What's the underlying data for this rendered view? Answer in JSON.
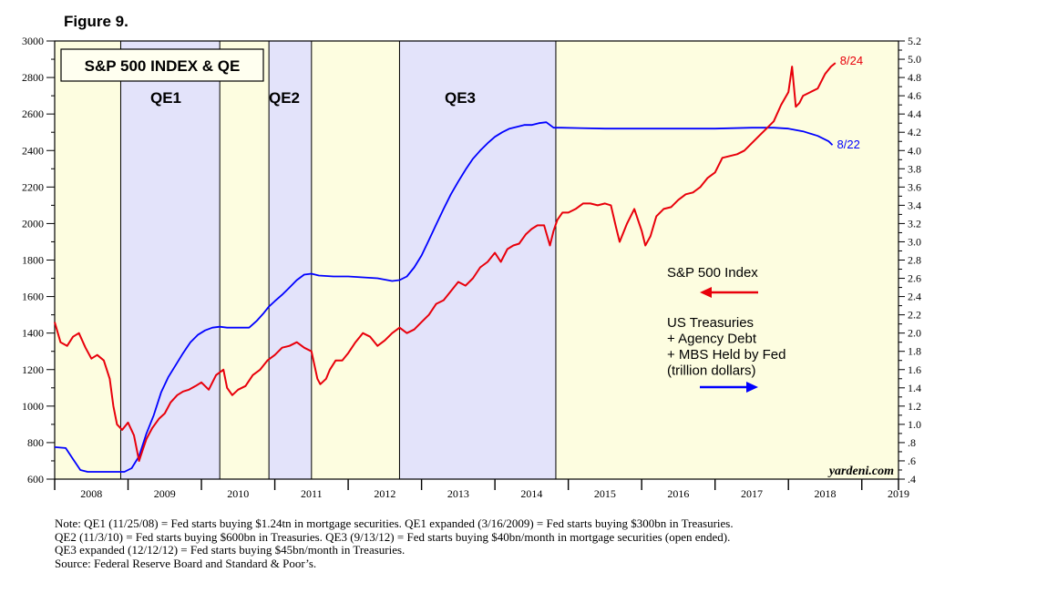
{
  "figure_label": "Figure 9.",
  "chart_data": {
    "type": "line",
    "title": "S&P 500 INDEX & QE",
    "x_range": [
      2008.0,
      2019.5
    ],
    "x_tick_labels": [
      "2008",
      "2009",
      "2010",
      "2011",
      "2012",
      "2013",
      "2014",
      "2015",
      "2016",
      "2017",
      "2018",
      "2019"
    ],
    "left_axis": {
      "range": [
        600,
        3000
      ],
      "tick_labels": [
        "600",
        "800",
        "1000",
        "1200",
        "1400",
        "1600",
        "1800",
        "2000",
        "2200",
        "2400",
        "2600",
        "2800",
        "3000"
      ]
    },
    "right_axis": {
      "range": [
        0.4,
        5.2
      ],
      "tick_labels": [
        ".4",
        ".6",
        ".8",
        "1.0",
        "1.2",
        "1.4",
        "1.6",
        "1.8",
        "2.0",
        "2.2",
        "2.4",
        "2.6",
        "2.8",
        "3.0",
        "3.2",
        "3.4",
        "3.6",
        "3.8",
        "4.0",
        "4.2",
        "4.4",
        "4.6",
        "4.8",
        "5.0",
        "5.2"
      ]
    },
    "qe_periods": [
      {
        "name": "QE1",
        "start": 2008.9,
        "end": 2010.25
      },
      {
        "name": "QE2",
        "start": 2010.92,
        "end": 2011.5
      },
      {
        "name": "QE3",
        "start": 2012.7,
        "end": 2014.83
      }
    ],
    "colors": {
      "qe_band": "#e3e3fa",
      "non_qe_band": "#fdfde0",
      "sp500": "#e8000b",
      "fed_holdings": "#0000ff"
    },
    "series": [
      {
        "name": "S&P 500 Index",
        "axis": "left",
        "end_label": "8/24",
        "x": [
          2008.0,
          2008.08,
          2008.17,
          2008.25,
          2008.33,
          2008.42,
          2008.5,
          2008.58,
          2008.67,
          2008.75,
          2008.8,
          2008.85,
          2008.92,
          2009.0,
          2009.08,
          2009.15,
          2009.2,
          2009.25,
          2009.33,
          2009.42,
          2009.5,
          2009.58,
          2009.67,
          2009.75,
          2009.83,
          2009.92,
          2010.0,
          2010.1,
          2010.2,
          2010.3,
          2010.35,
          2010.42,
          2010.5,
          2010.6,
          2010.7,
          2010.8,
          2010.9,
          2011.0,
          2011.1,
          2011.2,
          2011.3,
          2011.4,
          2011.5,
          2011.58,
          2011.62,
          2011.7,
          2011.75,
          2011.83,
          2011.92,
          2012.0,
          2012.1,
          2012.2,
          2012.3,
          2012.4,
          2012.5,
          2012.6,
          2012.7,
          2012.8,
          2012.9,
          2013.0,
          2013.1,
          2013.2,
          2013.3,
          2013.4,
          2013.5,
          2013.6,
          2013.7,
          2013.8,
          2013.9,
          2014.0,
          2014.08,
          2014.17,
          2014.25,
          2014.33,
          2014.42,
          2014.5,
          2014.58,
          2014.67,
          2014.75,
          2014.8,
          2014.85,
          2014.92,
          2015.0,
          2015.1,
          2015.2,
          2015.3,
          2015.4,
          2015.5,
          2015.58,
          2015.65,
          2015.7,
          2015.8,
          2015.9,
          2016.0,
          2016.05,
          2016.12,
          2016.2,
          2016.3,
          2016.4,
          2016.5,
          2016.6,
          2016.7,
          2016.8,
          2016.9,
          2017.0,
          2017.1,
          2017.2,
          2017.3,
          2017.4,
          2017.5,
          2017.6,
          2017.7,
          2017.8,
          2017.9,
          2018.0,
          2018.05,
          2018.1,
          2018.15,
          2018.2,
          2018.3,
          2018.4,
          2018.5,
          2018.58,
          2018.64
        ],
        "values": [
          1460,
          1350,
          1330,
          1380,
          1400,
          1320,
          1260,
          1280,
          1250,
          1150,
          1000,
          900,
          870,
          910,
          840,
          700,
          760,
          820,
          880,
          930,
          960,
          1020,
          1060,
          1080,
          1090,
          1110,
          1130,
          1090,
          1170,
          1200,
          1100,
          1060,
          1090,
          1110,
          1170,
          1200,
          1250,
          1280,
          1320,
          1330,
          1350,
          1320,
          1300,
          1150,
          1120,
          1150,
          1200,
          1250,
          1250,
          1290,
          1350,
          1400,
          1380,
          1330,
          1360,
          1400,
          1430,
          1400,
          1420,
          1460,
          1500,
          1560,
          1580,
          1630,
          1680,
          1660,
          1700,
          1760,
          1790,
          1840,
          1790,
          1860,
          1880,
          1890,
          1940,
          1970,
          1990,
          1990,
          1880,
          1960,
          2020,
          2060,
          2060,
          2080,
          2110,
          2110,
          2100,
          2110,
          2100,
          1980,
          1900,
          2000,
          2080,
          1960,
          1880,
          1930,
          2040,
          2080,
          2090,
          2130,
          2160,
          2170,
          2200,
          2250,
          2280,
          2360,
          2370,
          2380,
          2400,
          2440,
          2480,
          2520,
          2560,
          2650,
          2720,
          2860,
          2640,
          2660,
          2700,
          2720,
          2740,
          2820,
          2860,
          2880
        ]
      },
      {
        "name": "US Treasuries + Agency Debt + MBS Held by Fed (trillion dollars)",
        "axis": "right",
        "end_label": "8/22",
        "x": [
          2008.0,
          2008.15,
          2008.25,
          2008.35,
          2008.45,
          2008.6,
          2008.75,
          2008.85,
          2008.95,
          2009.05,
          2009.15,
          2009.25,
          2009.35,
          2009.45,
          2009.55,
          2009.65,
          2009.75,
          2009.85,
          2009.95,
          2010.05,
          2010.15,
          2010.25,
          2010.35,
          2010.45,
          2010.55,
          2010.65,
          2010.75,
          2010.85,
          2010.92,
          2011.0,
          2011.1,
          2011.2,
          2011.3,
          2011.4,
          2011.5,
          2011.6,
          2011.8,
          2012.0,
          2012.2,
          2012.4,
          2012.6,
          2012.7,
          2012.8,
          2012.9,
          2013.0,
          2013.1,
          2013.2,
          2013.3,
          2013.4,
          2013.5,
          2013.6,
          2013.7,
          2013.8,
          2013.9,
          2014.0,
          2014.1,
          2014.2,
          2014.3,
          2014.4,
          2014.5,
          2014.6,
          2014.7,
          2014.8,
          2014.9,
          2015.5,
          2016.0,
          2016.5,
          2017.0,
          2017.5,
          2017.8,
          2018.0,
          2018.2,
          2018.4,
          2018.55,
          2018.6
        ],
        "values": [
          0.75,
          0.74,
          0.62,
          0.5,
          0.48,
          0.48,
          0.48,
          0.48,
          0.48,
          0.52,
          0.65,
          0.9,
          1.1,
          1.35,
          1.52,
          1.65,
          1.78,
          1.9,
          1.98,
          2.03,
          2.06,
          2.07,
          2.06,
          2.06,
          2.06,
          2.06,
          2.13,
          2.22,
          2.29,
          2.35,
          2.42,
          2.5,
          2.58,
          2.64,
          2.65,
          2.63,
          2.62,
          2.62,
          2.61,
          2.6,
          2.57,
          2.58,
          2.62,
          2.72,
          2.85,
          3.02,
          3.19,
          3.36,
          3.52,
          3.66,
          3.79,
          3.91,
          4.0,
          4.08,
          4.15,
          4.2,
          4.24,
          4.26,
          4.28,
          4.28,
          4.3,
          4.31,
          4.25,
          4.25,
          4.24,
          4.24,
          4.24,
          4.24,
          4.25,
          4.25,
          4.24,
          4.21,
          4.16,
          4.1,
          4.06
        ]
      }
    ],
    "annotations": {
      "sp500_legend": "S&P 500 Index",
      "fed_legend_lines": [
        "US Treasuries",
        "+ Agency Debt",
        "+ MBS Held by Fed",
        "(trillion dollars)"
      ],
      "watermark": "yardeni.com"
    }
  },
  "notes": [
    "Note: QE1 (11/25/08) = Fed starts buying $1.24tn in mortgage securities. QE1 expanded (3/16/2009) = Fed starts buying $300bn in Treasuries.",
    "QE2 (11/3/10) = Fed starts buying $600bn in Treasuries. QE3 (9/13/12) = Fed starts buying $40bn/month in mortgage securities (open ended).",
    "QE3 expanded (12/12/12) = Fed starts buying $45bn/month in Treasuries.",
    "Source: Federal Reserve Board and Standard & Poor’s."
  ]
}
